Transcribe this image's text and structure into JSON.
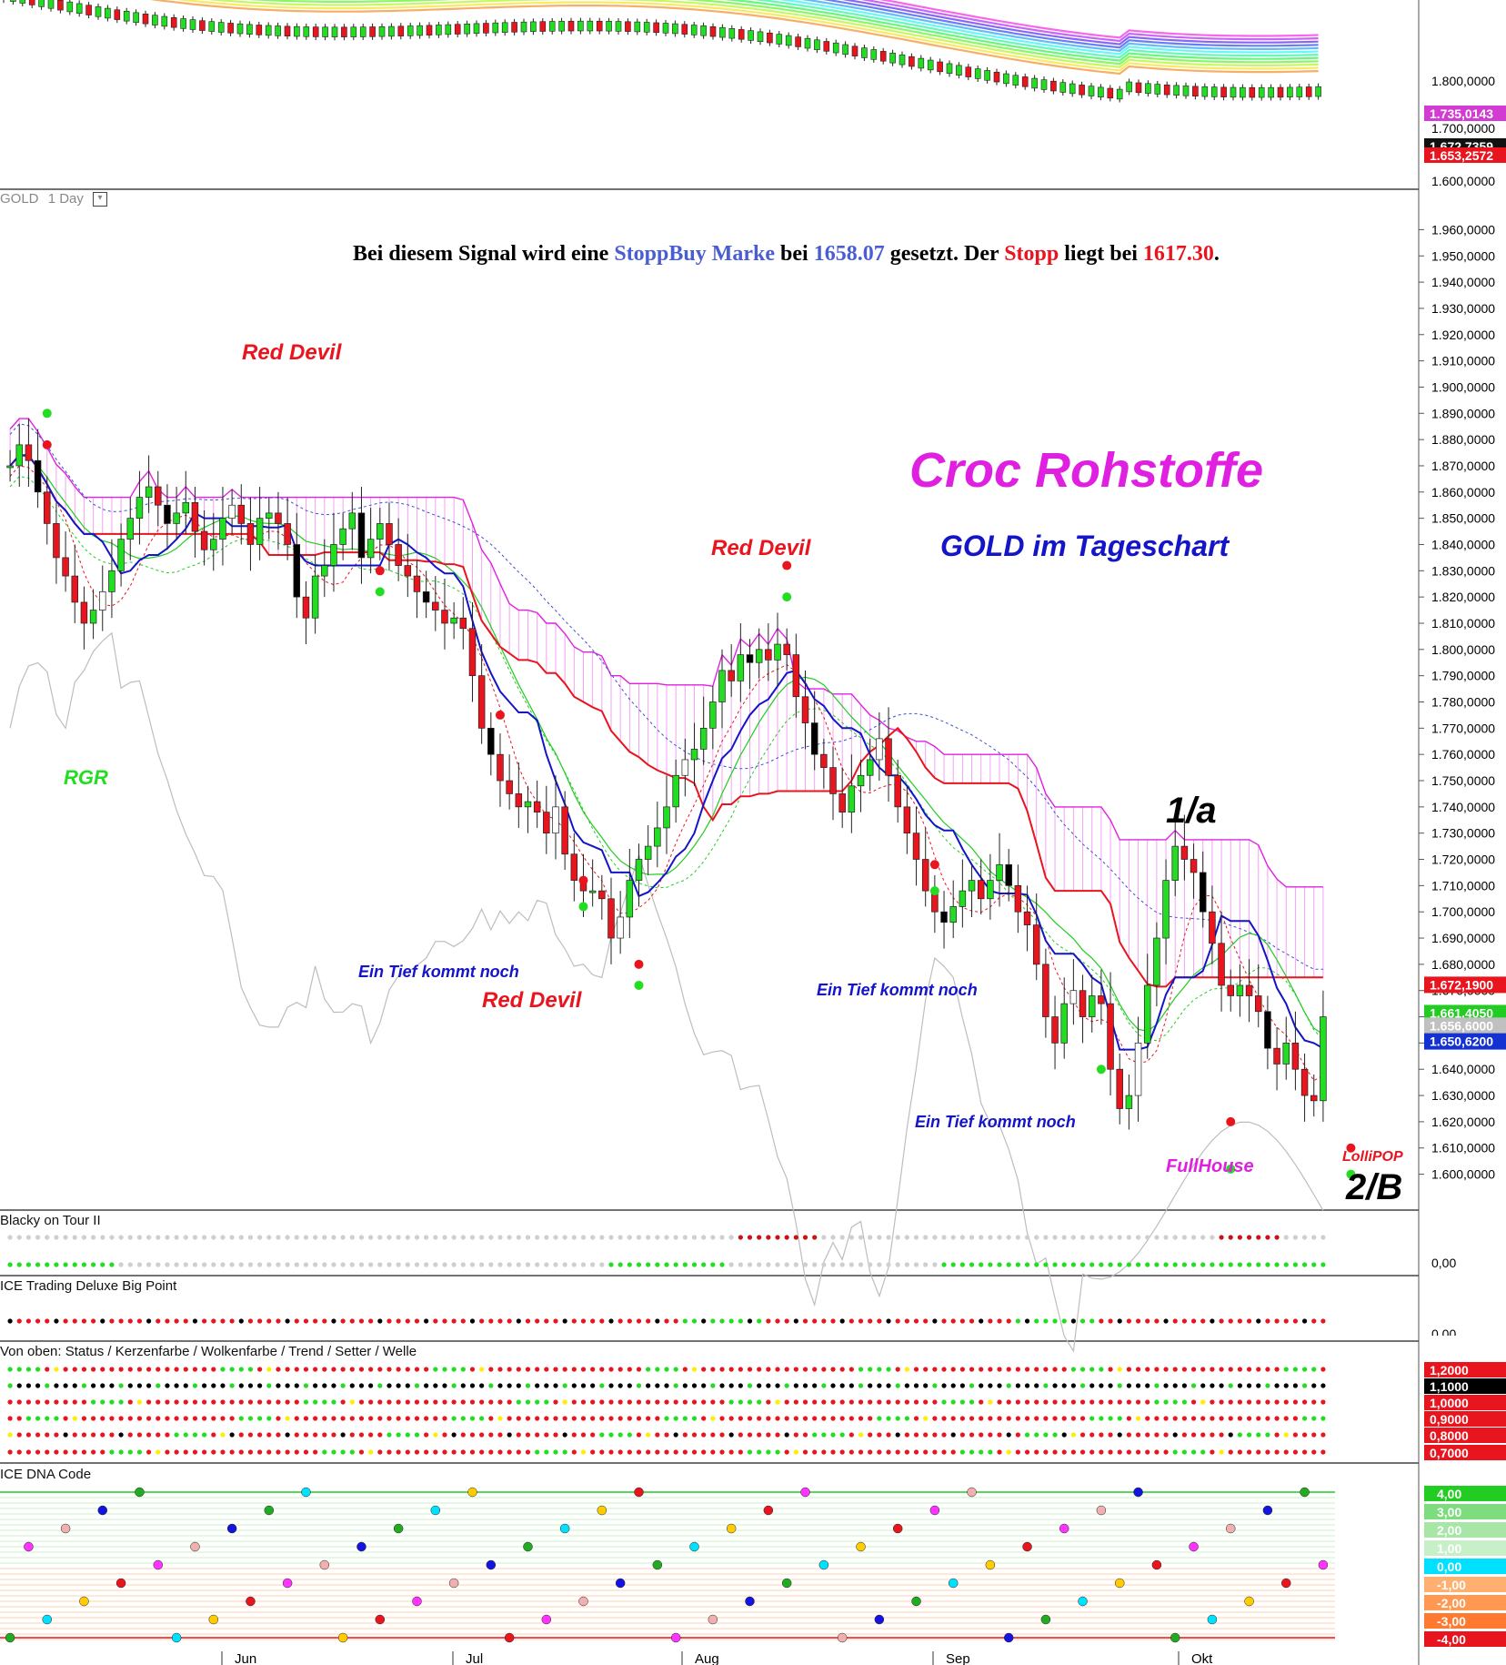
{
  "header": {
    "symbol": "GOLD",
    "interval": "1 Day"
  },
  "chart_data": {
    "type": "candlestick",
    "title": "Croc Rohstoffe",
    "subtitle": "GOLD im Tageschart",
    "note": {
      "p1": "Bei diesem Signal wird eine ",
      "stoppbuy": "StoppBuy Marke",
      "p2": " bei ",
      "entry": "1658.07",
      "p3": " gesetzt. Der ",
      "stopp": "Stopp",
      "p4": " liegt bei ",
      "stop": "1617.30",
      "p5": "."
    },
    "ylim": [
      1595,
      1965
    ],
    "y_ticks": [
      "1.960,0000",
      "1.950,0000",
      "1.940,0000",
      "1.930,0000",
      "1.920,0000",
      "1.910,0000",
      "1.900,0000",
      "1.890,0000",
      "1.880,0000",
      "1.870,0000",
      "1.860,0000",
      "1.850,0000",
      "1.840,0000",
      "1.830,0000",
      "1.820,0000",
      "1.810,0000",
      "1.800,0000",
      "1.790,0000",
      "1.780,0000",
      "1.770,0000",
      "1.760,0000",
      "1.750,0000",
      "1.740,0000",
      "1.730,0000",
      "1.720,0000",
      "1.710,0000",
      "1.700,0000",
      "1.690,0000",
      "1.680,0000",
      "1.670,0000",
      "1.660,0000",
      "1.650,0000",
      "1.640,0000",
      "1.630,0000",
      "1.620,0000",
      "1.610,0000",
      "1.600,0000"
    ],
    "x_labels": [
      "Jun",
      "Jul",
      "Aug",
      "Sep",
      "Okt"
    ],
    "price_tags": [
      {
        "text": "1.672,1900",
        "value": 1672.19,
        "color": "#e8141e"
      },
      {
        "text": "1.661,4050",
        "value": 1661.405,
        "color": "#22cc22"
      },
      {
        "text": "1.656,6000",
        "value": 1656.6,
        "color": "#c0c0c0"
      },
      {
        "text": "1.650,6200",
        "value": 1650.62,
        "color": "#1432d2"
      }
    ],
    "close": [
      1870,
      1878,
      1872,
      1860,
      1848,
      1835,
      1828,
      1818,
      1810,
      1815,
      1822,
      1830,
      1842,
      1850,
      1858,
      1862,
      1855,
      1848,
      1852,
      1856,
      1845,
      1838,
      1842,
      1850,
      1855,
      1848,
      1840,
      1850,
      1852,
      1848,
      1840,
      1820,
      1812,
      1828,
      1832,
      1840,
      1846,
      1852,
      1835,
      1842,
      1848,
      1840,
      1832,
      1828,
      1822,
      1818,
      1815,
      1810,
      1812,
      1808,
      1790,
      1770,
      1760,
      1750,
      1745,
      1740,
      1742,
      1738,
      1730,
      1740,
      1722,
      1712,
      1708,
      1708,
      1705,
      1690,
      1698,
      1712,
      1720,
      1725,
      1732,
      1740,
      1752,
      1758,
      1762,
      1770,
      1780,
      1792,
      1788,
      1798,
      1795,
      1800,
      1796,
      1802,
      1798,
      1782,
      1772,
      1760,
      1755,
      1745,
      1738,
      1748,
      1752,
      1758,
      1766,
      1752,
      1740,
      1730,
      1720,
      1708,
      1700,
      1696,
      1702,
      1708,
      1712,
      1705,
      1712,
      1718,
      1710,
      1700,
      1695,
      1680,
      1660,
      1650,
      1665,
      1670,
      1660,
      1668,
      1665,
      1640,
      1625,
      1630,
      1650,
      1672,
      1690,
      1712,
      1725,
      1720,
      1715,
      1700,
      1688,
      1672,
      1668,
      1672,
      1668,
      1662,
      1648,
      1642,
      1650,
      1640,
      1630,
      1628,
      1660
    ],
    "legend_labels": [
      {
        "text": "Red Devil",
        "color": "#e8141e"
      },
      {
        "text": "Red Devil",
        "color": "#e8141e"
      },
      {
        "text": "Red Devil",
        "color": "#e8141e"
      },
      {
        "text": "RGR",
        "color": "#22dd22"
      },
      {
        "text": "Ein Tief kommt noch",
        "color": "#1414c8"
      },
      {
        "text": "Ein Tief kommt noch",
        "color": "#1414c8"
      },
      {
        "text": "Ein Tief kommt noch",
        "color": "#1414c8"
      },
      {
        "text": "1/a",
        "color": "#000000"
      },
      {
        "text": "2/B",
        "color": "#000000"
      },
      {
        "text": "FullHouse",
        "color": "#e020e0"
      },
      {
        "text": "LolliPOP",
        "color": "#e8141e"
      }
    ]
  },
  "overview": {
    "ticks": [
      "1.800,0000",
      "1.700,0000",
      "1.600,0000"
    ],
    "tags": [
      {
        "text": "1.735,0143",
        "color": "#d23cd2"
      },
      {
        "text": "1.672,7359",
        "color": "#111111"
      },
      {
        "text": "1.653,2572",
        "color": "#e8141e"
      }
    ]
  },
  "panels": {
    "blacky": {
      "title": "Blacky on Tour II",
      "axis": "0,00"
    },
    "bigpoint": {
      "title": "ICE Trading Deluxe Big Point",
      "axis": "0,00"
    },
    "status": {
      "title": "Von oben: Status / Kerzenfarbe / Wolkenfarbe / Trend / Setter / Welle",
      "tags": [
        {
          "text": "1,2000",
          "color": "#e8141e"
        },
        {
          "text": "1,1000",
          "color": "#000000"
        },
        {
          "text": "1,0000",
          "color": "#e8141e"
        },
        {
          "text": "0,9000",
          "color": "#e8141e"
        },
        {
          "text": "0,8000",
          "color": "#e8141e"
        },
        {
          "text": "0,7000",
          "color": "#e8141e"
        }
      ]
    },
    "dna": {
      "title": "ICE DNA Code",
      "tags": [
        {
          "text": "4,00",
          "color": "#22cc22"
        },
        {
          "text": "3,00",
          "color": "#7ddc7d"
        },
        {
          "text": "2,00",
          "color": "#a8e6a8"
        },
        {
          "text": "1,00",
          "color": "#c8f0c8"
        },
        {
          "text": "0,00",
          "color": "#00e0ff"
        },
        {
          "text": "-1,00",
          "color": "#ffb070"
        },
        {
          "text": "-2,00",
          "color": "#ff9850"
        },
        {
          "text": "-3,00",
          "color": "#ff7a30"
        },
        {
          "text": "-4,00",
          "color": "#e8141e"
        }
      ]
    }
  },
  "colors": {
    "bull": "#22dd22",
    "bear": "#e8141e",
    "kijun": "#e8141e",
    "tenkan": "#1414c8",
    "cloud": "#e020e0"
  }
}
